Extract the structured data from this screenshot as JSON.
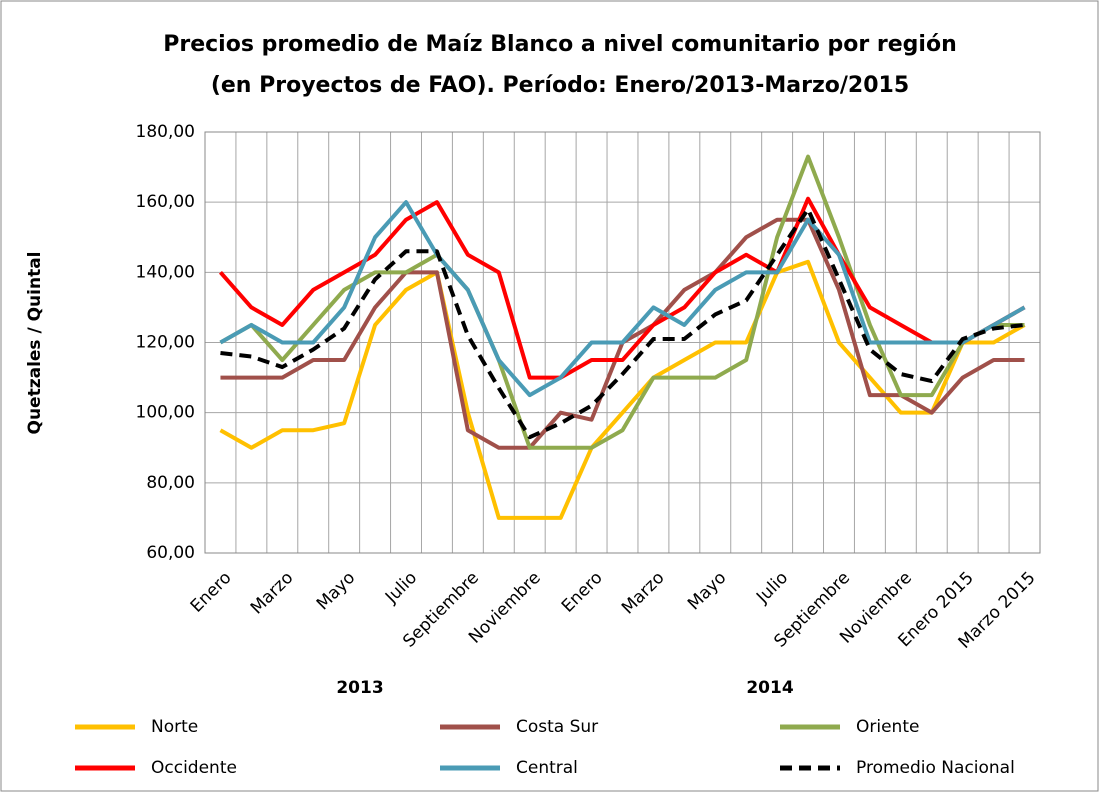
{
  "chart_data": {
    "type": "line",
    "title": [
      "Precios promedio de Maíz Blanco a nivel comunitario por región",
      "(en Proyectos de FAO). Período: Enero/2013-Marzo/2015"
    ],
    "y_label": "Quetzales / Quintal",
    "categories": [
      "Enero",
      null,
      "Marzo",
      null,
      "Mayo",
      null,
      "Julio",
      null,
      "Septiembre",
      null,
      "Noviembre",
      null,
      "Enero",
      null,
      "Marzo",
      null,
      "Mayo",
      null,
      "Julio",
      null,
      "Septiembre",
      null,
      "Noviembre",
      null,
      "Enero 2015",
      null,
      "Marzo 2015"
    ],
    "group_labels": [
      "2013",
      "2014"
    ],
    "ylim": [
      60,
      180
    ],
    "yticks": [
      {
        "value": 60,
        "label": "60,00"
      },
      {
        "value": 80,
        "label": "80,00"
      },
      {
        "value": 100,
        "label": "100,00"
      },
      {
        "value": 120,
        "label": "120,00"
      },
      {
        "value": 140,
        "label": "140,00"
      },
      {
        "value": 160,
        "label": "160,00"
      },
      {
        "value": 180,
        "label": "180,00"
      }
    ],
    "grid": true,
    "series": [
      {
        "name": "Norte",
        "color": "#ffc000",
        "dash": false,
        "values": [
          95,
          90,
          95,
          95,
          97,
          125,
          135,
          140,
          100,
          70,
          70,
          70,
          90,
          100,
          110,
          115,
          120,
          120,
          140,
          143,
          120,
          110,
          100,
          100,
          120,
          120,
          125
        ]
      },
      {
        "name": "Costa Sur",
        "color": "#a0504a",
        "dash": false,
        "values": [
          110,
          110,
          110,
          115,
          115,
          130,
          140,
          140,
          95,
          90,
          90,
          100,
          98,
          120,
          125,
          135,
          140,
          150,
          155,
          155,
          135,
          105,
          105,
          100,
          110,
          115,
          115
        ]
      },
      {
        "name": "Oriente",
        "color": "#8faa4e",
        "dash": false,
        "values": [
          120,
          125,
          115,
          125,
          135,
          140,
          140,
          145,
          135,
          115,
          90,
          90,
          90,
          95,
          110,
          110,
          110,
          115,
          150,
          173,
          150,
          125,
          105,
          105,
          120,
          125,
          125
        ]
      },
      {
        "name": "Occidente",
        "color": "#ff0000",
        "dash": false,
        "values": [
          140,
          130,
          125,
          135,
          140,
          145,
          155,
          160,
          145,
          140,
          110,
          110,
          115,
          115,
          125,
          130,
          140,
          145,
          140,
          161,
          145,
          130,
          125,
          120,
          120,
          125,
          130
        ]
      },
      {
        "name": "Central",
        "color": "#4a9bb5",
        "dash": false,
        "values": [
          120,
          125,
          120,
          120,
          130,
          150,
          160,
          145,
          135,
          115,
          105,
          110,
          120,
          120,
          130,
          125,
          135,
          140,
          140,
          155,
          145,
          120,
          120,
          120,
          120,
          125,
          130
        ]
      },
      {
        "name": "Promedio Nacional",
        "color": "#000000",
        "dash": true,
        "values": [
          117,
          116,
          113,
          118,
          124,
          138,
          146,
          146,
          122,
          107,
          93,
          97,
          102,
          111,
          121,
          121,
          128,
          132,
          145,
          158,
          138,
          118,
          111,
          109,
          121,
          124,
          125
        ]
      }
    ]
  }
}
